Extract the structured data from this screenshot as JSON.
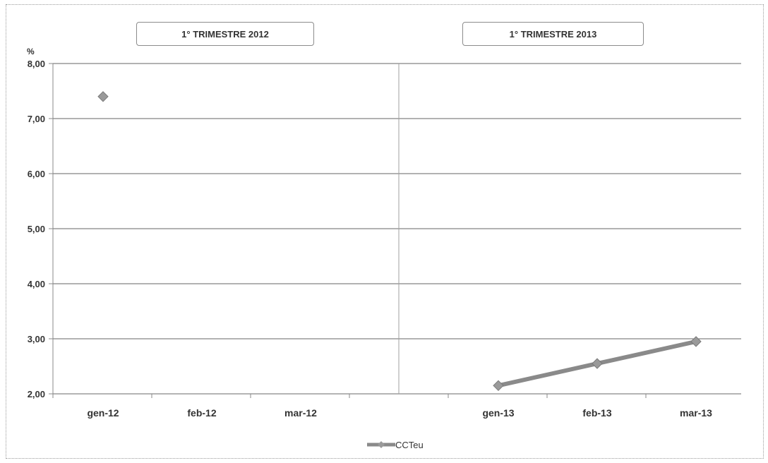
{
  "unit_label": "%",
  "periods": [
    "1° TRIMESTRE 2012",
    "1° TRIMESTRE 2013"
  ],
  "colors": {
    "series": "#8a8a8a",
    "marker": "#9a9a9a",
    "grid": "#666666",
    "axis": "#888888"
  },
  "chart_data": {
    "type": "line",
    "title": "",
    "xlabel": "",
    "ylabel": "%",
    "categories": [
      "gen-12",
      "feb-12",
      "mar-12",
      "",
      "gen-13",
      "feb-13",
      "mar-13"
    ],
    "ylim": [
      2,
      8
    ],
    "yticks": [
      "8,00",
      "7,00",
      "6,00",
      "5,00",
      "4,00",
      "3,00",
      "2,00"
    ],
    "grid": true,
    "legend": "bottom-center",
    "series": [
      {
        "name": "CCTeu",
        "values": [
          7.4,
          null,
          null,
          null,
          2.15,
          2.55,
          2.95
        ]
      }
    ]
  }
}
